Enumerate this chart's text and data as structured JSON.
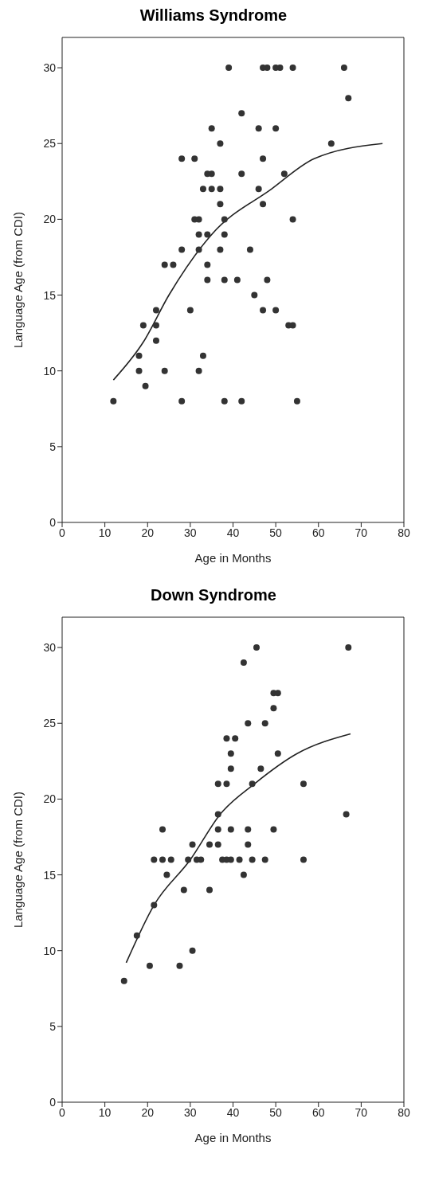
{
  "chart_data": [
    {
      "type": "scatter",
      "title": "Williams Syndrome",
      "xlabel": "Age in Months",
      "ylabel": "Language Age (from CDI)",
      "xlim": [
        0,
        80
      ],
      "xticks": [
        0,
        10,
        20,
        30,
        40,
        50,
        60,
        70,
        80
      ],
      "ylim": [
        0,
        32
      ],
      "yticks": [
        0,
        5,
        10,
        15,
        20,
        25,
        30
      ],
      "marker": "circle",
      "series": [
        {
          "color": "#333333",
          "x": [
            66,
            67,
            63,
            54,
            54,
            54,
            53,
            52,
            55,
            51,
            50,
            50,
            50,
            48,
            47,
            47,
            47,
            48,
            47,
            46,
            46,
            45,
            44,
            42,
            42,
            42,
            41,
            39,
            38,
            38,
            38,
            38,
            37,
            37,
            37,
            37,
            35,
            35,
            34,
            35,
            34,
            34,
            34,
            33,
            33,
            32,
            31,
            32,
            32,
            32,
            31,
            30,
            28,
            28,
            28,
            26,
            24,
            24,
            22,
            22,
            22,
            19.5,
            19,
            18,
            18,
            12
          ],
          "values": [
            30,
            28,
            25,
            30,
            20,
            13,
            13,
            23,
            8,
            30,
            30,
            26,
            14,
            30,
            30,
            24,
            21,
            16,
            14,
            26,
            22,
            15,
            18,
            27,
            23,
            8,
            16,
            30,
            20,
            19,
            16,
            8,
            25,
            22,
            21,
            18,
            26,
            23,
            23,
            22,
            19,
            17,
            16,
            22,
            11,
            20,
            20,
            19,
            18,
            10,
            24,
            14,
            24,
            18,
            8,
            17,
            17,
            10,
            14,
            13,
            12,
            9,
            13,
            11,
            10,
            8
          ]
        },
        {
          "type": "line",
          "color": "#222222",
          "marker": "none",
          "x": [
            12,
            19,
            25,
            35,
            49,
            59,
            75
          ],
          "values": [
            9.4,
            11.9,
            15,
            19,
            22,
            24,
            25
          ]
        }
      ]
    },
    {
      "type": "scatter",
      "title": "Down Syndrome",
      "xlabel": "Age in Months",
      "ylabel": "Language Age (from CDI)",
      "xlim": [
        0,
        80
      ],
      "xticks": [
        0,
        10,
        20,
        30,
        40,
        50,
        60,
        70,
        80
      ],
      "ylim": [
        0,
        32
      ],
      "yticks": [
        0,
        5,
        10,
        15,
        20,
        25,
        30
      ],
      "marker": "circle",
      "series": [
        {
          "color": "#333333",
          "x": [
            67,
            66.5,
            56.5,
            56.5,
            50.5,
            49.5,
            49.5,
            50.5,
            49.5,
            47.5,
            47.5,
            46.5,
            45.5,
            44.5,
            44.5,
            42.5,
            43.5,
            43.5,
            43.5,
            42.5,
            41.5,
            40.5,
            39.5,
            39.5,
            39.5,
            39.5,
            38.5,
            37.5,
            38.5,
            38.5,
            36.5,
            36.5,
            36.5,
            36.5,
            34.5,
            34.5,
            32.5,
            31.5,
            30.5,
            29.5,
            30.5,
            28.5,
            27.5,
            25.5,
            24.5,
            23.5,
            23.5,
            21.5,
            21.5,
            20.5,
            17.5,
            14.5
          ],
          "values": [
            30,
            19,
            21,
            16,
            27,
            27,
            26,
            23,
            18,
            25,
            16,
            22,
            30,
            21,
            16,
            29,
            25,
            18,
            17,
            15,
            16,
            24,
            23,
            22,
            18,
            16,
            16,
            16,
            24,
            21,
            21,
            19,
            18,
            17,
            17,
            14,
            16,
            16,
            17,
            16,
            10,
            14,
            9,
            16,
            15,
            18,
            16,
            16,
            13,
            9,
            11,
            8
          ]
        },
        {
          "type": "line",
          "color": "#222222",
          "marker": "none",
          "x": [
            15,
            21.5,
            30,
            37,
            45,
            55,
            67.5
          ],
          "values": [
            9.2,
            13,
            16,
            19,
            21,
            23,
            24.3
          ]
        }
      ]
    }
  ]
}
